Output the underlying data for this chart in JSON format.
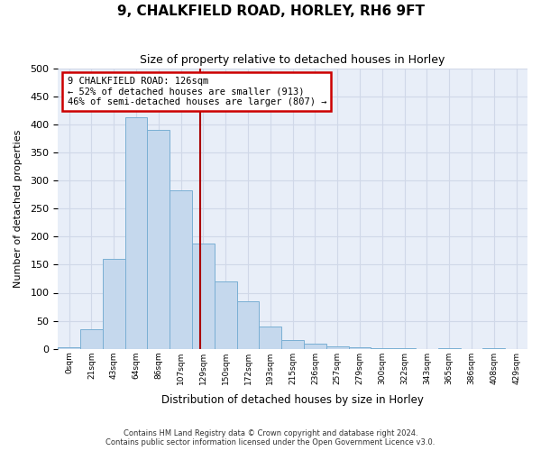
{
  "title": "9, CHALKFIELD ROAD, HORLEY, RH6 9FT",
  "subtitle": "Size of property relative to detached houses in Horley",
  "xlabel": "Distribution of detached houses by size in Horley",
  "ylabel": "Number of detached properties",
  "bar_labels": [
    "0sqm",
    "21sqm",
    "43sqm",
    "64sqm",
    "86sqm",
    "107sqm",
    "129sqm",
    "150sqm",
    "172sqm",
    "193sqm",
    "215sqm",
    "236sqm",
    "257sqm",
    "279sqm",
    "300sqm",
    "322sqm",
    "343sqm",
    "365sqm",
    "386sqm",
    "408sqm",
    "429sqm"
  ],
  "bar_values": [
    2,
    35,
    160,
    413,
    390,
    283,
    188,
    120,
    85,
    40,
    16,
    10,
    4,
    2,
    1,
    1,
    0,
    1,
    0,
    1,
    0
  ],
  "bar_color": "#c5d8ed",
  "bar_edge_color": "#7aafd4",
  "grid_color": "#d0d8e8",
  "bg_color": "#e8eef8",
  "annotation_title": "9 CHALKFIELD ROAD: 126sqm",
  "annotation_line1": "← 52% of detached houses are smaller (913)",
  "annotation_line2": "46% of semi-detached houses are larger (807) →",
  "annotation_box_facecolor": "#ffffff",
  "annotation_border_color": "#cc0000",
  "vline_color": "#aa0000",
  "vline_x": 5.864,
  "footer1": "Contains HM Land Registry data © Crown copyright and database right 2024.",
  "footer2": "Contains public sector information licensed under the Open Government Licence v3.0.",
  "ylim": [
    0,
    500
  ],
  "yticks": [
    0,
    50,
    100,
    150,
    200,
    250,
    300,
    350,
    400,
    450,
    500
  ]
}
